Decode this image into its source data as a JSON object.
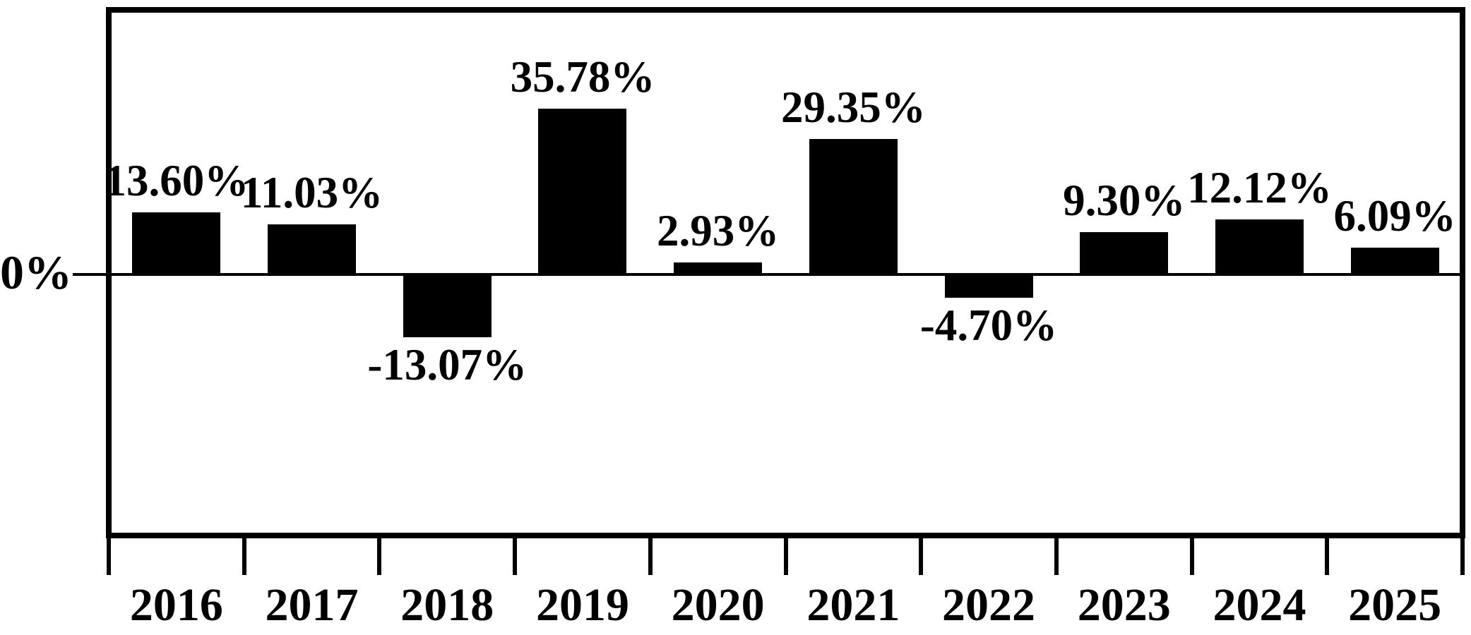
{
  "chart_data": {
    "type": "bar",
    "title": "",
    "xlabel": "",
    "ylabel": "",
    "categories": [
      "2016",
      "2017",
      "2018",
      "2019",
      "2020",
      "2021",
      "2022",
      "2023",
      "2024",
      "2025"
    ],
    "values": [
      13.6,
      11.03,
      -13.07,
      35.78,
      2.93,
      29.35,
      -4.7,
      9.3,
      12.12,
      6.09
    ],
    "value_labels": [
      "13.60%",
      "11.03%",
      "-13.07%",
      "35.78%",
      "2.93%",
      "29.35%",
      "-4.70%",
      "9.30%",
      "12.12%",
      "6.09%"
    ],
    "y_zero_label": "0%",
    "ylim": [
      -56,
      57
    ],
    "grid": false,
    "legend": false,
    "colors": {
      "bar": "#000000",
      "axis": "#000000",
      "text": "#000000",
      "background": "#ffffff"
    }
  }
}
